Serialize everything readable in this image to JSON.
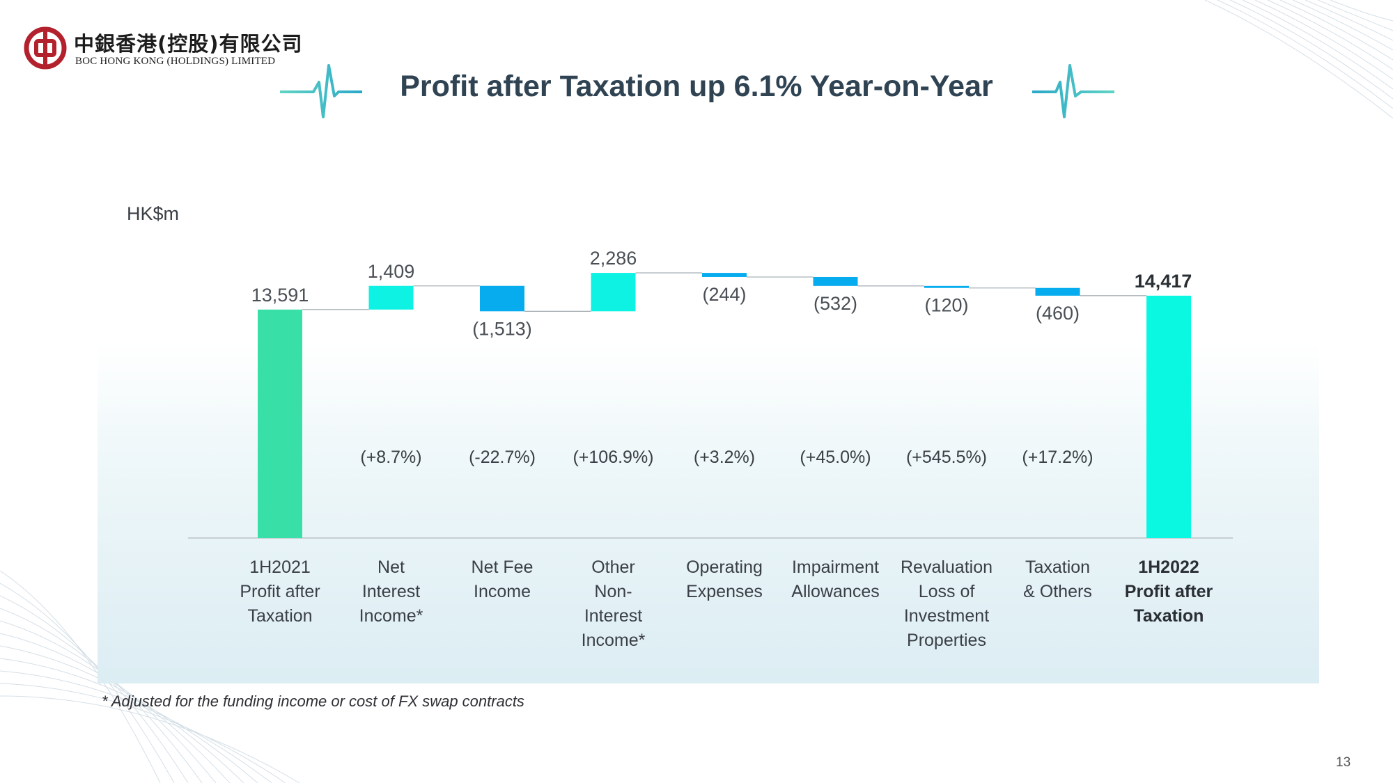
{
  "brand": {
    "name_cn": "中銀香港(控股)有限公司",
    "name_en": "BOC HONG KONG (HOLDINGS) LIMITED",
    "color": "#b3212d"
  },
  "slide": {
    "title": "Profit after Taxation up 6.1% Year-on-Year",
    "footnote": "* Adjusted for the funding income or cost of FX swap contracts",
    "page_number": "13"
  },
  "chart_data": {
    "type": "bar",
    "subtype": "waterfall",
    "unit_label": "HK$m",
    "categories": [
      [
        "1H2021",
        "Profit after",
        "Taxation"
      ],
      [
        "Net",
        "Interest",
        "Income*"
      ],
      [
        "Net Fee",
        "Income"
      ],
      [
        "Other",
        "Non-",
        "Interest",
        "Income*"
      ],
      [
        "Operating",
        "Expenses"
      ],
      [
        "Impairment",
        "Allowances"
      ],
      [
        "Revaluation",
        "Loss of",
        "Investment",
        "Properties"
      ],
      [
        "Taxation",
        "& Others"
      ],
      [
        "1H2022",
        "Profit after",
        "Taxation"
      ]
    ],
    "values": [
      13591,
      1409,
      -1513,
      2286,
      -244,
      -532,
      -120,
      -460,
      14417
    ],
    "kinds": [
      "total",
      "delta",
      "delta",
      "delta",
      "delta",
      "delta",
      "delta",
      "delta",
      "total"
    ],
    "value_labels": [
      "13,591",
      "1,409",
      "(1,513)",
      "2,286",
      "(244)",
      "(532)",
      "(120)",
      "(460)",
      "14,417"
    ],
    "change_labels": [
      "",
      "(+8.7%)",
      "(-22.7%)",
      "(+106.9%)",
      "(+3.2%)",
      "(+45.0%)",
      "(+545.5%)",
      "(+17.2%)",
      ""
    ],
    "colors": [
      "#38e0a8",
      "#0ef2e4",
      "#06acee",
      "#0ef2e4",
      "#06acee",
      "#06acee",
      "#06acee",
      "#06acee",
      "#0af8e2"
    ],
    "bold_last": true,
    "ylim": [
      0,
      16000
    ],
    "grid": false,
    "legend": "none"
  }
}
